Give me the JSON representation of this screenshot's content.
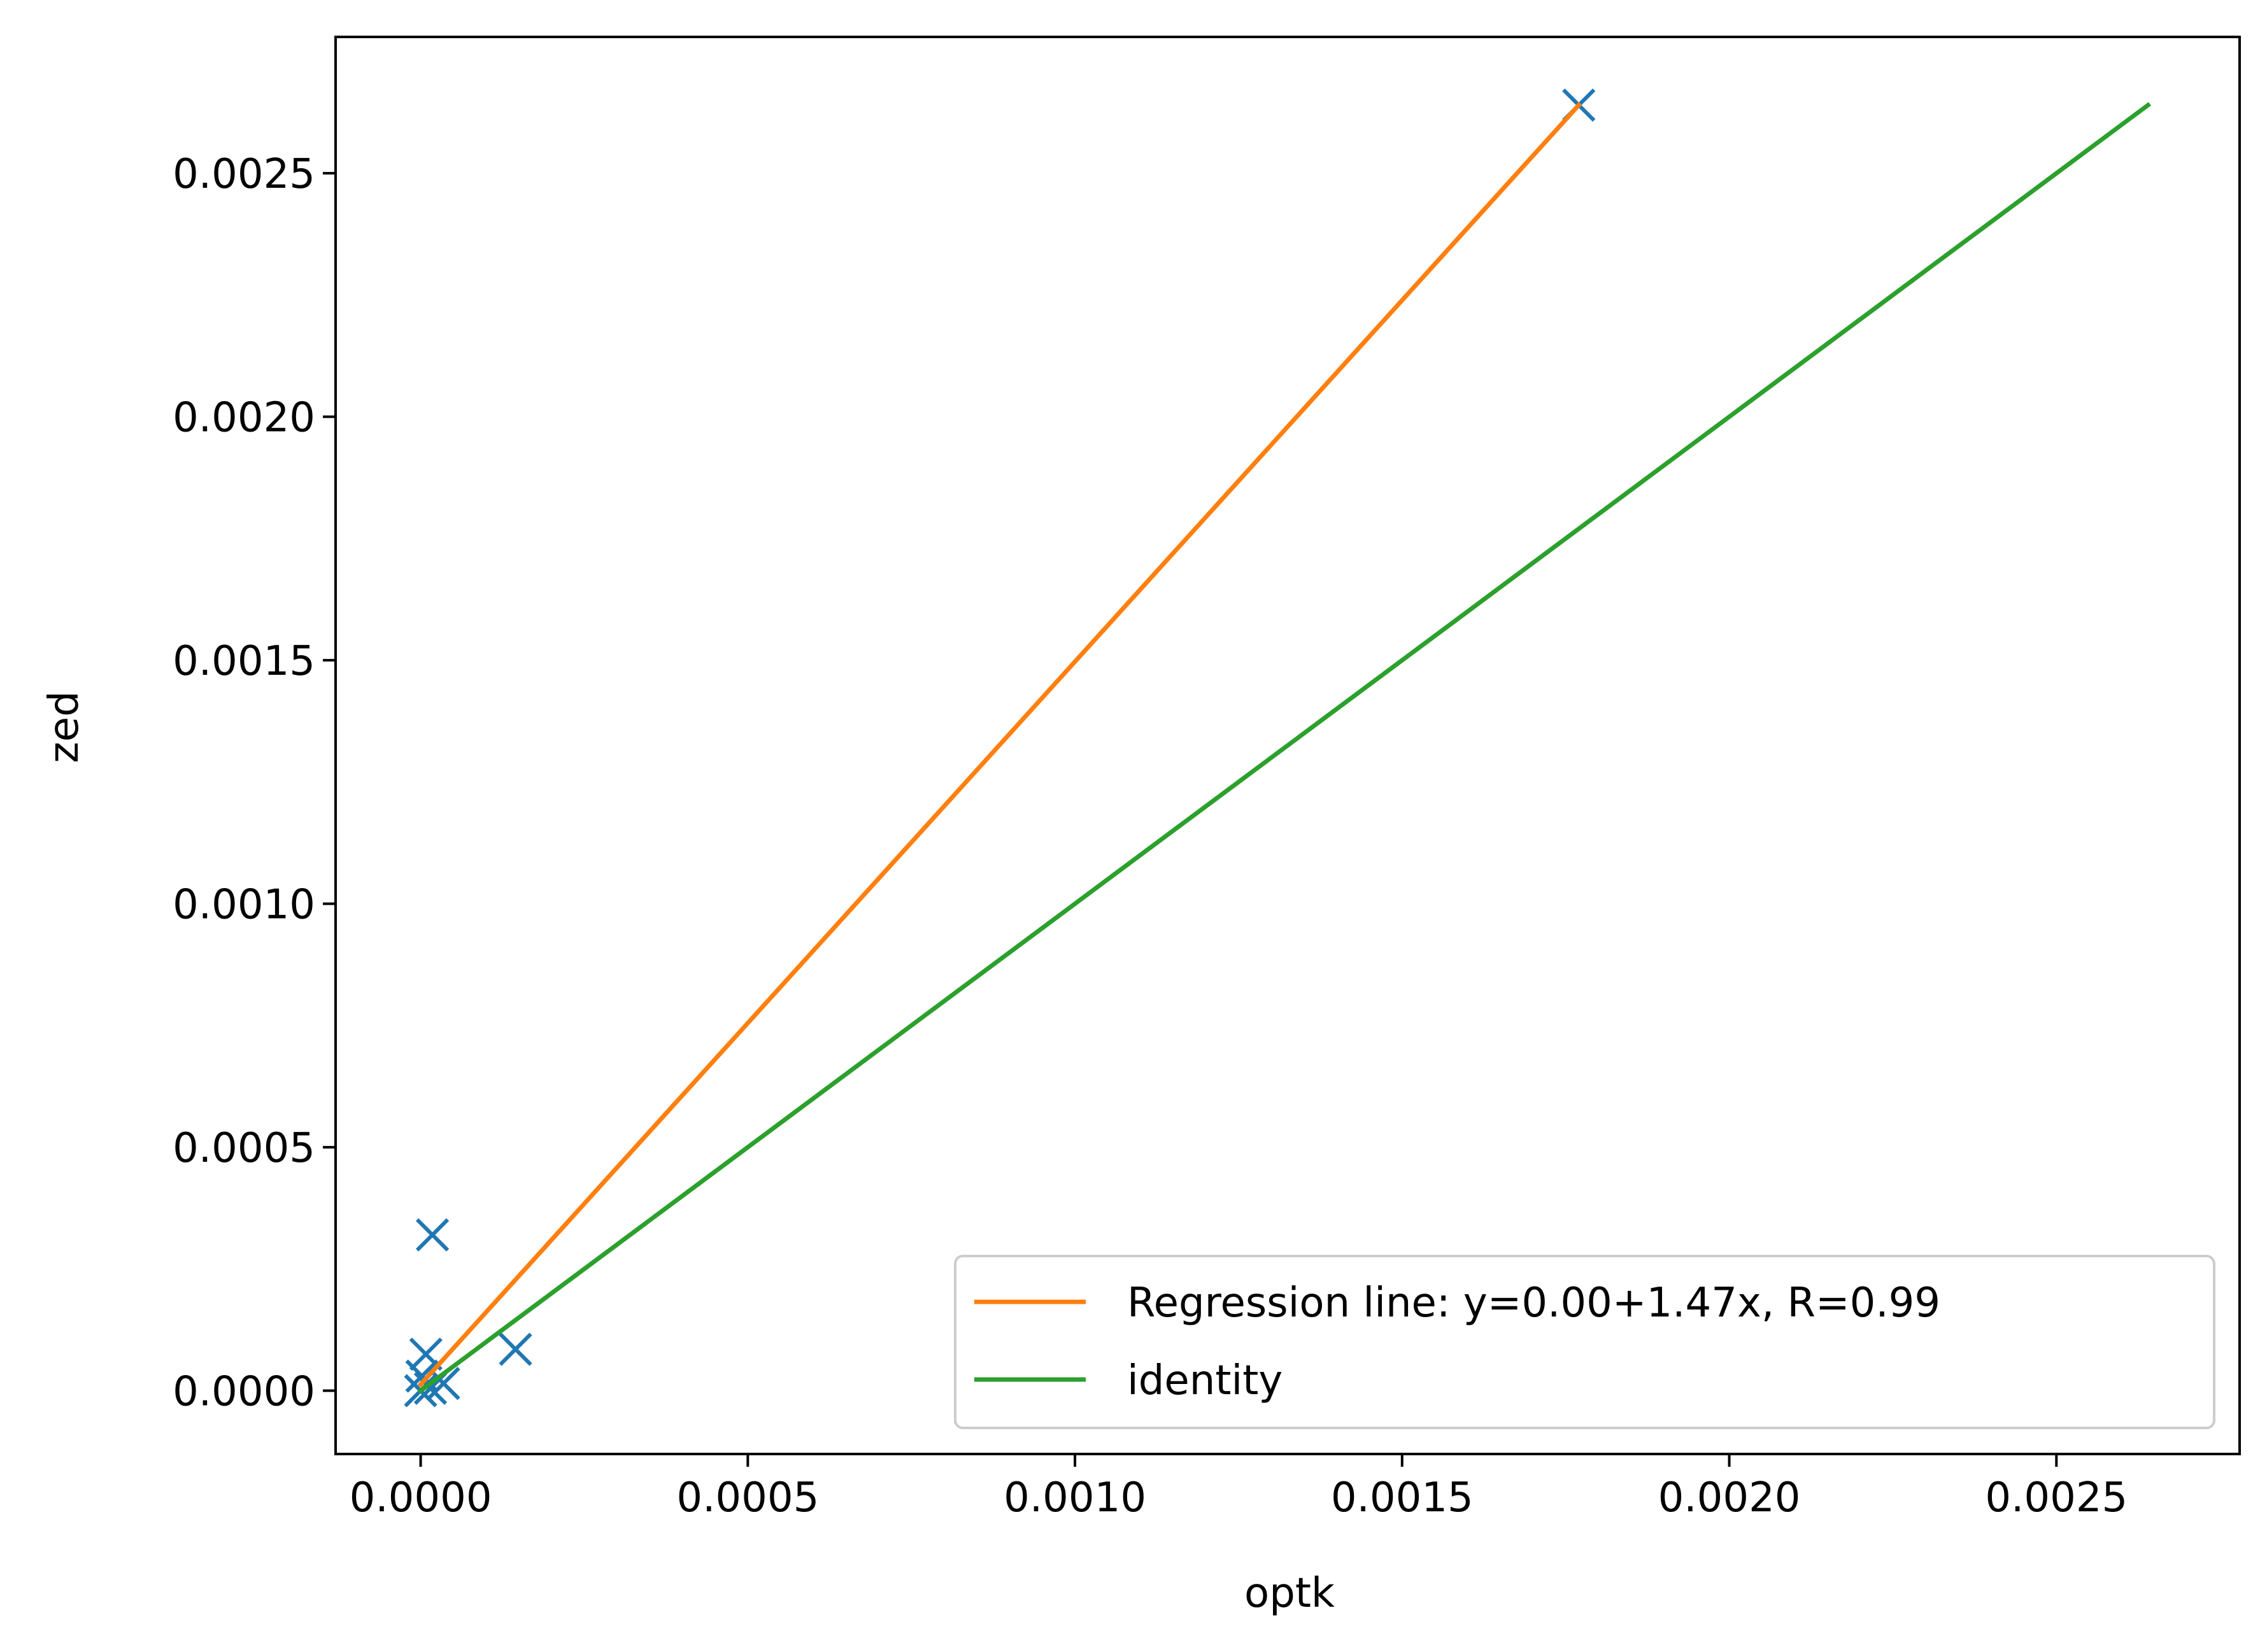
{
  "chart_data": {
    "type": "scatter",
    "xlabel": "optk",
    "ylabel": "zed",
    "xlim": [
      -0.00013,
      0.00278
    ],
    "ylim": [
      -0.00013,
      0.00278
    ],
    "x_ticks": [
      "0.0000",
      "0.0005",
      "0.0010",
      "0.0015",
      "0.0020",
      "0.0025"
    ],
    "y_ticks": [
      "0.0000",
      "0.0005",
      "0.0010",
      "0.0015",
      "0.0020",
      "0.0025"
    ],
    "x_tick_values": [
      0,
      0.0005,
      0.001,
      0.0015,
      0.002,
      0.0025
    ],
    "y_tick_values": [
      0,
      0.0005,
      0.001,
      0.0015,
      0.002,
      0.0025
    ],
    "grid": false,
    "legend_position": "lower-right",
    "series": [
      {
        "kind": "scatter",
        "marker": "x",
        "color": "#1f77b4",
        "points": [
          [
            0.0,
            0.0
          ],
          [
            2e-06,
            3e-05
          ],
          [
            8e-06,
            7.5e-05
          ],
          [
            1.5e-05,
            5e-06
          ],
          [
            1.8e-05,
            0.00032
          ],
          [
            3.5e-05,
            1.5e-05
          ],
          [
            0.000145,
            8.5e-05
          ],
          [
            0.00177,
            0.00264
          ]
        ]
      },
      {
        "kind": "line",
        "name": "Regression line: y=0.00+1.47x, R=0.99",
        "color": "#ff7f0e",
        "x": [
          0.0,
          0.00177
        ],
        "y": [
          1.28e-05,
          0.00264
        ]
      },
      {
        "kind": "line",
        "name": "identity",
        "color": "#2ca02c",
        "x": [
          0.0,
          0.00264
        ],
        "y": [
          0.0,
          0.00264
        ]
      }
    ]
  }
}
